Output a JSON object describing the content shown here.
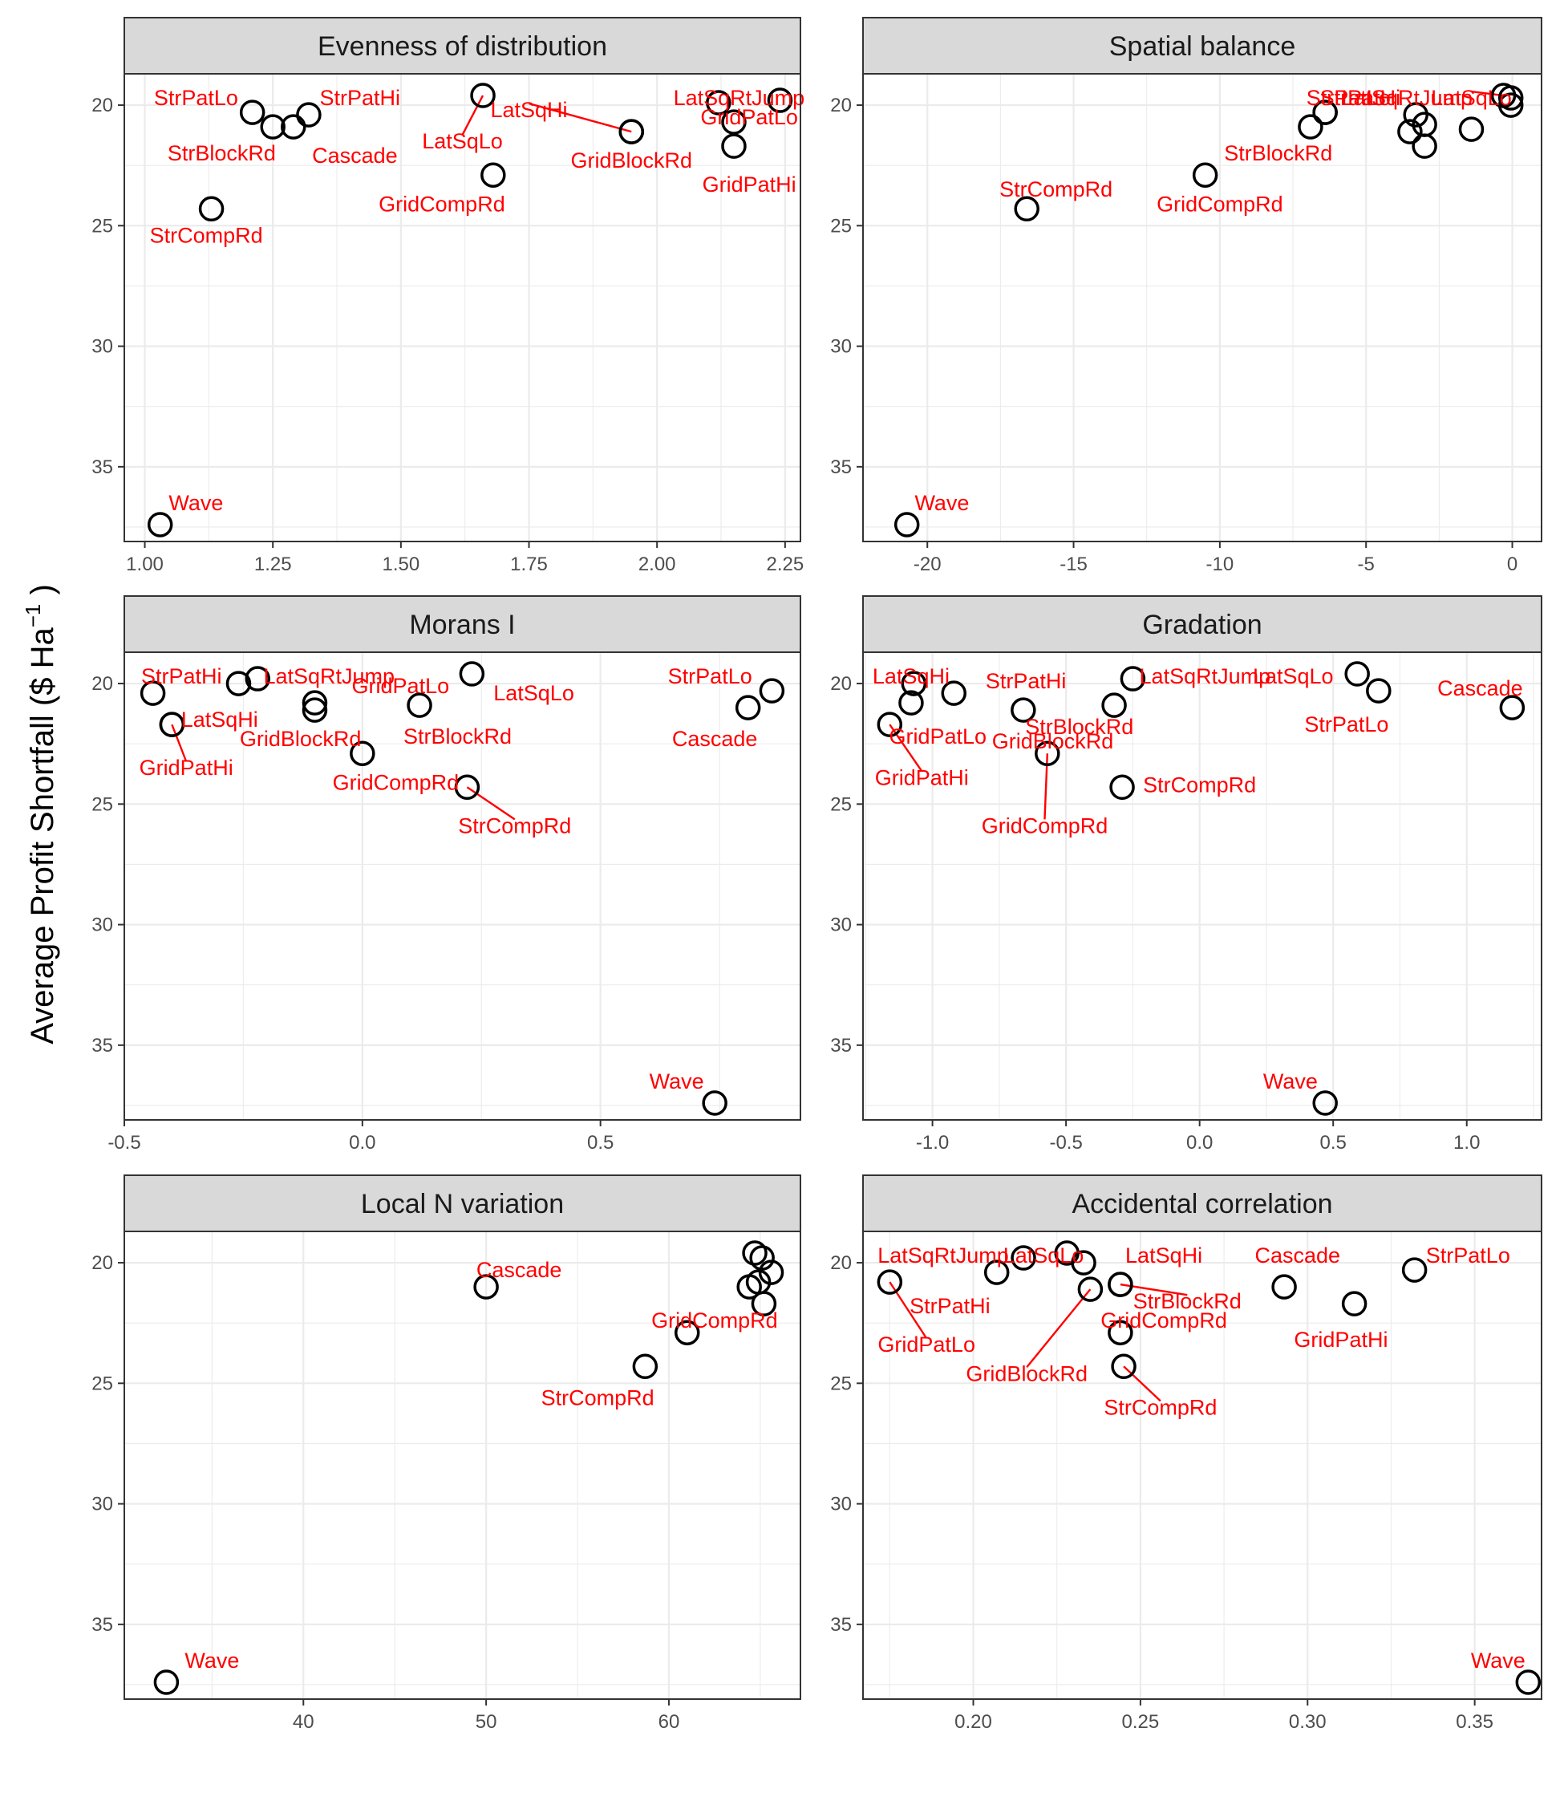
{
  "figure": {
    "ylabel": {
      "main": "Average Profit Shortfall ($  Ha",
      "sup": "−1",
      "tail": " )"
    },
    "colors": {
      "label": "#ff0000",
      "leader": "#ff0000",
      "point": "#000000",
      "strip": "#d9d9d9",
      "grid": "#ebebeb"
    }
  },
  "chart_data": [
    {
      "type": "scatter",
      "title": "Evenness of distribution",
      "xlim": [
        0.96,
        2.28
      ],
      "ylim": [
        18.7,
        38.1
      ],
      "y_reversed": true,
      "xticks": [
        1.0,
        1.25,
        1.5,
        1.75,
        2.0,
        2.25
      ],
      "xtick_labels": [
        "1.00",
        "1.25",
        "1.50",
        "1.75",
        "2.00",
        "2.25"
      ],
      "yticks": [
        20,
        25,
        30,
        35
      ],
      "ytick_labels": [
        "20",
        "25",
        "30",
        "35"
      ],
      "points": [
        {
          "name": "StrPatLo",
          "x": 1.21,
          "y": 20.3,
          "label": "StrPatLo",
          "lx": 1.1,
          "ly": 19.7
        },
        {
          "name": "StrPatHi",
          "x": 1.32,
          "y": 20.4,
          "label": "StrPatHi",
          "lx": 1.42,
          "ly": 19.7
        },
        {
          "name": "StrBlockRd",
          "x": 1.25,
          "y": 20.9,
          "label": "StrBlockRd",
          "lx": 1.15,
          "ly": 22.0
        },
        {
          "name": "Cascade",
          "x": 1.29,
          "y": 20.9,
          "label": "Cascade",
          "lx": 1.41,
          "ly": 22.1
        },
        {
          "name": "LatSqLo",
          "x": 1.66,
          "y": 19.6,
          "label": "LatSqLo",
          "lx": 1.62,
          "ly": 21.5,
          "leader": true
        },
        {
          "name": "LatSqHi",
          "x": 1.95,
          "y": 21.1,
          "label": "LatSqHi",
          "lx": 1.75,
          "ly": 20.2,
          "leader": true
        },
        {
          "name": "LatSqRtJump",
          "x": 2.12,
          "y": 19.9,
          "label": "LatSqRtJump",
          "lx": 2.16,
          "ly": 19.7
        },
        {
          "name": "GridPatLo",
          "x": 2.15,
          "y": 20.7,
          "label": "GridPatLo",
          "lx": 2.18,
          "ly": 20.5
        },
        {
          "name": "GridBlockRd",
          "x": 1.95,
          "y": 21.1,
          "label": "GridBlockRd",
          "lx": 1.95,
          "ly": 22.3
        },
        {
          "name": "GridPatHi",
          "x": 2.15,
          "y": 21.7,
          "label": "GridPatHi",
          "lx": 2.18,
          "ly": 23.3
        },
        {
          "name": "GridCompRd",
          "x": 1.68,
          "y": 22.9,
          "label": "GridCompRd",
          "lx": 1.58,
          "ly": 24.1
        },
        {
          "name": "StrCompRd",
          "x": 1.13,
          "y": 24.3,
          "label": "StrCompRd",
          "lx": 1.12,
          "ly": 25.4
        },
        {
          "name": "Wave",
          "x": 1.03,
          "y": 37.4,
          "label": "Wave",
          "lx": 1.1,
          "ly": 36.5
        },
        {
          "name": "GridPatHi-dup",
          "x": 2.24,
          "y": 19.8,
          "label": "",
          "lx": 0,
          "ly": 0
        }
      ]
    },
    {
      "type": "scatter",
      "title": "Spatial balance",
      "xlim": [
        -22.2,
        1.0
      ],
      "ylim": [
        18.7,
        38.1
      ],
      "y_reversed": true,
      "xticks": [
        -20,
        -15,
        -10,
        -5,
        0
      ],
      "xtick_labels": [
        "-20",
        "-15",
        "-10",
        "-5",
        "0"
      ],
      "yticks": [
        20,
        25,
        30,
        35
      ],
      "ytick_labels": [
        "20",
        "25",
        "30",
        "35"
      ],
      "points": [
        {
          "name": "StrPatLo",
          "x": -6.4,
          "y": 20.3,
          "label": "StrPatLo",
          "lx": -5.6,
          "ly": 19.7
        },
        {
          "name": "StrPatHi",
          "x": -6.9,
          "y": 20.9,
          "label": "StrPatHi",
          "lx": -5.2,
          "ly": 19.7
        },
        {
          "name": "LatSqRtJump",
          "x": -3.3,
          "y": 20.4,
          "label": "LatSqRtJump",
          "lx": -3.6,
          "ly": 19.7
        },
        {
          "name": "LatSqLo",
          "x": -0.3,
          "y": 19.6,
          "label": "LatSqLo",
          "lx": -1.4,
          "ly": 19.7,
          "leader": true
        },
        {
          "name": "LatSqHi",
          "x": -3.0,
          "y": 20.8,
          "label": "",
          "lx": 0,
          "ly": 0
        },
        {
          "name": "Cascade",
          "x": -1.4,
          "y": 21.0,
          "label": "",
          "lx": 0,
          "ly": 0
        },
        {
          "name": "GridPatLo",
          "x": -3.5,
          "y": 21.1,
          "label": "",
          "lx": 0,
          "ly": 0
        },
        {
          "name": "GridPatHi",
          "x": -3.0,
          "y": 21.7,
          "label": "",
          "lx": 0,
          "ly": 0
        },
        {
          "name": "GridBlockRd",
          "x": -0.05,
          "y": 20.0,
          "label": "",
          "lx": 0,
          "ly": 0
        },
        {
          "name": "StrBlockRd",
          "x": -6.4,
          "y": 20.3,
          "label": "StrBlockRd",
          "lx": -8.0,
          "ly": 22.0
        },
        {
          "name": "GridCompRd",
          "x": -10.5,
          "y": 22.9,
          "label": "GridCompRd",
          "lx": -10.0,
          "ly": 24.1
        },
        {
          "name": "StrCompRd",
          "x": -16.6,
          "y": 24.3,
          "label": "StrCompRd",
          "lx": -15.6,
          "ly": 23.5
        },
        {
          "name": "Wave",
          "x": -20.7,
          "y": 37.4,
          "label": "Wave",
          "lx": -19.5,
          "ly": 36.5
        },
        {
          "name": "extra",
          "x": -0.05,
          "y": 19.7,
          "label": "",
          "lx": 0,
          "ly": 0
        }
      ]
    },
    {
      "type": "scatter",
      "title": "Morans I",
      "xlim": [
        -0.5,
        0.92
      ],
      "ylim": [
        18.7,
        38.1
      ],
      "y_reversed": true,
      "xticks": [
        -0.5,
        0.0,
        0.5
      ],
      "xtick_labels": [
        "-0.5",
        "0.0",
        "0.5"
      ],
      "yticks": [
        20,
        25,
        30,
        35
      ],
      "ytick_labels": [
        "20",
        "25",
        "30",
        "35"
      ],
      "points": [
        {
          "name": "StrPatHi",
          "x": -0.44,
          "y": 20.4,
          "label": "StrPatHi",
          "lx": -0.38,
          "ly": 19.7
        },
        {
          "name": "LatSqRtJump",
          "x": -0.22,
          "y": 19.8,
          "label": "LatSqRtJump",
          "lx": -0.07,
          "ly": 19.7
        },
        {
          "name": "StrPatLo",
          "x": -0.26,
          "y": 20.0,
          "label": "",
          "lx": 0,
          "ly": 0
        },
        {
          "name": "LatSqHi",
          "x": -0.4,
          "y": 21.7,
          "label": "LatSqHi",
          "lx": -0.3,
          "ly": 21.5
        },
        {
          "name": "GridPatHi",
          "x": -0.4,
          "y": 21.7,
          "label": "GridPatHi",
          "lx": -0.37,
          "ly": 23.5,
          "leader": true
        },
        {
          "name": "GridPatLo",
          "x": -0.1,
          "y": 20.8,
          "label": "GridPatLo",
          "lx": 0.08,
          "ly": 20.1
        },
        {
          "name": "GridBlockRd",
          "x": -0.1,
          "y": 21.1,
          "label": "GridBlockRd",
          "lx": -0.13,
          "ly": 22.3
        },
        {
          "name": "LatSqLo",
          "x": 0.23,
          "y": 19.6,
          "label": "LatSqLo",
          "lx": 0.36,
          "ly": 20.4
        },
        {
          "name": "StrBlockRd",
          "x": 0.12,
          "y": 20.9,
          "label": "StrBlockRd",
          "lx": 0.2,
          "ly": 22.2
        },
        {
          "name": "GridCompRd",
          "x": 0.0,
          "y": 22.9,
          "label": "GridCompRd",
          "lx": 0.07,
          "ly": 24.1
        },
        {
          "name": "StrCompRd",
          "x": 0.22,
          "y": 24.3,
          "label": "StrCompRd",
          "lx": 0.32,
          "ly": 25.9,
          "leader": true
        },
        {
          "name": "StrPatLo2",
          "x": 0.86,
          "y": 20.3,
          "label": "StrPatLo",
          "lx": 0.73,
          "ly": 19.7
        },
        {
          "name": "Cascade",
          "x": 0.81,
          "y": 21.0,
          "label": "Cascade",
          "lx": 0.74,
          "ly": 22.3
        },
        {
          "name": "Wave",
          "x": 0.74,
          "y": 37.4,
          "label": "Wave",
          "lx": 0.66,
          "ly": 36.5
        }
      ]
    },
    {
      "type": "scatter",
      "title": "Gradation",
      "xlim": [
        -1.26,
        1.28
      ],
      "ylim": [
        18.7,
        38.1
      ],
      "y_reversed": true,
      "xticks": [
        -1.0,
        -0.5,
        0.0,
        0.5,
        1.0
      ],
      "xtick_labels": [
        "-1.0",
        "-0.5",
        "0.0",
        "0.5",
        "1.0"
      ],
      "yticks": [
        20,
        25,
        30,
        35
      ],
      "ytick_labels": [
        "20",
        "25",
        "30",
        "35"
      ],
      "points": [
        {
          "name": "LatSqHi",
          "x": -1.07,
          "y": 20.0,
          "label": "LatSqHi",
          "lx": -1.08,
          "ly": 19.7
        },
        {
          "name": "GridPatLo",
          "x": -1.08,
          "y": 20.8,
          "label": "GridPatLo",
          "lx": -0.98,
          "ly": 22.2
        },
        {
          "name": "GridPatHi",
          "x": -1.16,
          "y": 21.7,
          "label": "GridPatHi",
          "lx": -1.04,
          "ly": 23.9,
          "leader": true
        },
        {
          "name": "StrPatHi",
          "x": -0.92,
          "y": 20.4,
          "label": "StrPatHi",
          "lx": -0.65,
          "ly": 19.9
        },
        {
          "name": "GridBlockRd",
          "x": -0.66,
          "y": 21.1,
          "label": "GridBlockRd",
          "lx": -0.55,
          "ly": 22.4
        },
        {
          "name": "StrBlockRd",
          "x": -0.32,
          "y": 20.9,
          "label": "StrBlockRd",
          "lx": -0.45,
          "ly": 21.8
        },
        {
          "name": "GridCompRd",
          "x": -0.57,
          "y": 22.9,
          "label": "GridCompRd",
          "lx": -0.58,
          "ly": 25.9,
          "leader": true
        },
        {
          "name": "LatSqRtJump",
          "x": -0.25,
          "y": 19.8,
          "label": "LatSqRtJump",
          "lx": 0.02,
          "ly": 19.7
        },
        {
          "name": "StrCompRd",
          "x": -0.29,
          "y": 24.3,
          "label": "StrCompRd",
          "lx": 0.0,
          "ly": 24.2
        },
        {
          "name": "LatSqLo",
          "x": 0.59,
          "y": 19.6,
          "label": "LatSqLo",
          "lx": 0.35,
          "ly": 19.7
        },
        {
          "name": "StrPatLo",
          "x": 0.67,
          "y": 20.3,
          "label": "StrPatLo",
          "lx": 0.55,
          "ly": 21.7
        },
        {
          "name": "Cascade",
          "x": 1.17,
          "y": 21.0,
          "label": "Cascade",
          "lx": 1.05,
          "ly": 20.2
        },
        {
          "name": "Wave",
          "x": 0.47,
          "y": 37.4,
          "label": "Wave",
          "lx": 0.34,
          "ly": 36.5
        }
      ]
    },
    {
      "type": "scatter",
      "title": "Local N variation",
      "xlim": [
        30.2,
        67.2
      ],
      "ylim": [
        18.7,
        38.1
      ],
      "y_reversed": true,
      "xticks": [
        40,
        50,
        60
      ],
      "xtick_labels": [
        "40",
        "50",
        "60"
      ],
      "yticks": [
        20,
        25,
        30,
        35
      ],
      "ytick_labels": [
        "20",
        "25",
        "30",
        "35"
      ],
      "points": [
        {
          "name": "Cascade",
          "x": 50.0,
          "y": 21.0,
          "label": "Cascade",
          "lx": 51.8,
          "ly": 20.3
        },
        {
          "name": "GridCompRd",
          "x": 61.0,
          "y": 22.9,
          "label": "GridCompRd",
          "lx": 62.5,
          "ly": 22.4
        },
        {
          "name": "StrCompRd",
          "x": 58.7,
          "y": 24.3,
          "label": "StrCompRd",
          "lx": 56.1,
          "ly": 25.6
        },
        {
          "name": "p1",
          "x": 64.7,
          "y": 19.6,
          "label": "",
          "lx": 0,
          "ly": 0
        },
        {
          "name": "p2",
          "x": 65.1,
          "y": 19.8,
          "label": "",
          "lx": 0,
          "ly": 0
        },
        {
          "name": "p3",
          "x": 65.6,
          "y": 20.4,
          "label": "",
          "lx": 0,
          "ly": 0
        },
        {
          "name": "p4",
          "x": 64.4,
          "y": 21.0,
          "label": "",
          "lx": 0,
          "ly": 0
        },
        {
          "name": "p5",
          "x": 64.9,
          "y": 20.8,
          "label": "",
          "lx": 0,
          "ly": 0
        },
        {
          "name": "p6",
          "x": 65.2,
          "y": 21.7,
          "label": "",
          "lx": 0,
          "ly": 0
        },
        {
          "name": "Wave",
          "x": 32.5,
          "y": 37.4,
          "label": "Wave",
          "lx": 35.0,
          "ly": 36.5
        }
      ]
    },
    {
      "type": "scatter",
      "title": "Accidental correlation",
      "xlim": [
        0.167,
        0.37
      ],
      "ylim": [
        18.7,
        38.1
      ],
      "y_reversed": true,
      "xticks": [
        0.2,
        0.25,
        0.3,
        0.35
      ],
      "xtick_labels": [
        "0.20",
        "0.25",
        "0.30",
        "0.35"
      ],
      "yticks": [
        20,
        25,
        30,
        35
      ],
      "ytick_labels": [
        "20",
        "25",
        "30",
        "35"
      ],
      "points": [
        {
          "name": "GridPatLo",
          "x": 0.175,
          "y": 20.8,
          "label": "GridPatLo",
          "lx": 0.186,
          "ly": 23.4,
          "leader": true
        },
        {
          "name": "LatSqRtJump",
          "x": 0.215,
          "y": 19.8,
          "label": "LatSqRtJump",
          "lx": 0.191,
          "ly": 19.7
        },
        {
          "name": "StrPatHi",
          "x": 0.207,
          "y": 20.4,
          "label": "StrPatHi",
          "lx": 0.193,
          "ly": 21.8
        },
        {
          "name": "LatSqLo",
          "x": 0.228,
          "y": 19.6,
          "label": "LatSqLo",
          "lx": 0.221,
          "ly": 19.7
        },
        {
          "name": "p-mid",
          "x": 0.233,
          "y": 20.0,
          "label": "",
          "lx": 0,
          "ly": 0
        },
        {
          "name": "GridBlockRd",
          "x": 0.235,
          "y": 21.1,
          "label": "GridBlockRd",
          "lx": 0.216,
          "ly": 24.6,
          "leader": true
        },
        {
          "name": "LatSqHi",
          "x": 0.244,
          "y": 20.9,
          "label": "LatSqHi",
          "lx": 0.257,
          "ly": 19.7
        },
        {
          "name": "StrBlockRd",
          "x": 0.244,
          "y": 20.9,
          "label": "StrBlockRd",
          "lx": 0.264,
          "ly": 21.6,
          "leader": true
        },
        {
          "name": "GridCompRd",
          "x": 0.244,
          "y": 22.9,
          "label": "GridCompRd",
          "lx": 0.257,
          "ly": 22.4
        },
        {
          "name": "StrCompRd",
          "x": 0.245,
          "y": 24.3,
          "label": "StrCompRd",
          "lx": 0.256,
          "ly": 26.0,
          "leader": true
        },
        {
          "name": "Cascade",
          "x": 0.293,
          "y": 21.0,
          "label": "Cascade",
          "lx": 0.297,
          "ly": 19.7
        },
        {
          "name": "GridPatHi",
          "x": 0.314,
          "y": 21.7,
          "label": "GridPatHi",
          "lx": 0.31,
          "ly": 23.2
        },
        {
          "name": "StrPatLo",
          "x": 0.332,
          "y": 20.3,
          "label": "StrPatLo",
          "lx": 0.348,
          "ly": 19.7
        },
        {
          "name": "Wave",
          "x": 0.366,
          "y": 37.4,
          "label": "Wave",
          "lx": 0.357,
          "ly": 36.5
        }
      ]
    }
  ]
}
